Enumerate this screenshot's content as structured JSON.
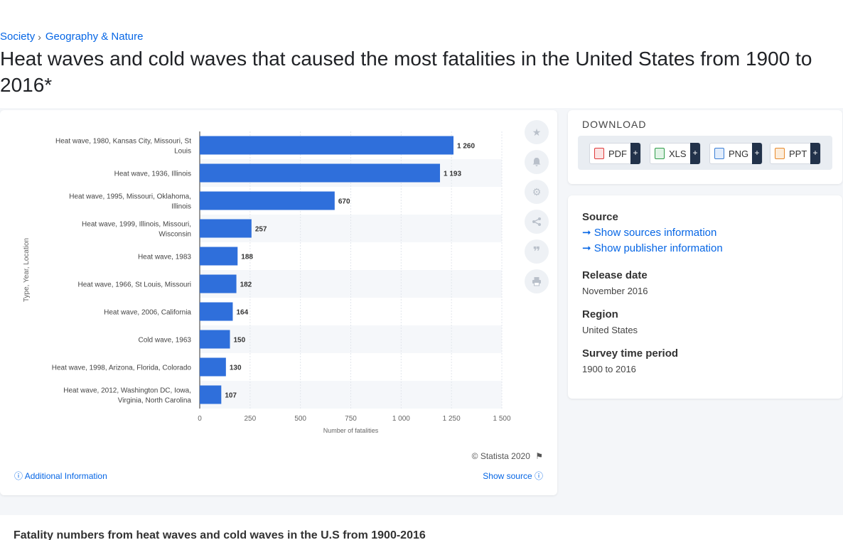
{
  "breadcrumb": {
    "items": [
      "Society",
      "Geography & Nature"
    ],
    "separator": "›"
  },
  "page_title": "Heat waves and cold waves that caused the most fatalities in the United States from 1900 to 2016*",
  "download": {
    "heading": "DOWNLOAD",
    "buttons": [
      {
        "label": "PDF",
        "icon": "pdf-file-icon",
        "color": "#e03a3a"
      },
      {
        "label": "XLS",
        "icon": "xls-file-icon",
        "color": "#2e9c4a"
      },
      {
        "label": "PNG",
        "icon": "png-file-icon",
        "color": "#3b7fd6"
      },
      {
        "label": "PPT",
        "icon": "ppt-file-icon",
        "color": "#e8892b"
      }
    ],
    "plus": "+"
  },
  "info": {
    "source_label": "Source",
    "show_sources": "Show sources information",
    "show_publisher": "Show publisher information",
    "release_label": "Release date",
    "release_value": "November 2016",
    "region_label": "Region",
    "region_value": "United States",
    "period_label": "Survey time period",
    "period_value": "1900 to 2016"
  },
  "chart_footer": {
    "copyright": "© Statista 2020",
    "additional": "Additional Information",
    "show_source": "Show source"
  },
  "tools": [
    "star-icon",
    "bell-icon",
    "gear-icon",
    "share-icon",
    "quote-icon",
    "print-icon"
  ],
  "bottom_title": "Fatality numbers from heat waves and cold waves in the U.S from 1900-2016",
  "colors": {
    "accent": "#0666e5",
    "bar": "#2f6fdb",
    "dark": "#22324a"
  },
  "chart_data": {
    "type": "bar",
    "orientation": "horizontal",
    "categories": [
      [
        "Heat wave, 1980, Kansas City, Missouri, St",
        "Louis"
      ],
      [
        "Heat wave, 1936, Illinois"
      ],
      [
        "Heat wave, 1995, Missouri, Oklahoma,",
        "Illinois"
      ],
      [
        "Heat wave, 1999, Illinois, Missouri,",
        "Wisconsin"
      ],
      [
        "Heat wave, 1983"
      ],
      [
        "Heat wave, 1966, St Louis, Missouri"
      ],
      [
        "Heat wave, 2006, California"
      ],
      [
        "Cold wave, 1963"
      ],
      [
        "Heat wave, 1998, Arizona, Florida, Colorado"
      ],
      [
        "Heat wave, 2012, Washington DC, Iowa,",
        "Virginia, North Carolina"
      ]
    ],
    "values": [
      1260,
      1193,
      670,
      257,
      188,
      182,
      164,
      150,
      130,
      107
    ],
    "value_labels": [
      "1 260",
      "1 193",
      "670",
      "257",
      "188",
      "182",
      "164",
      "150",
      "130",
      "107"
    ],
    "xticks": [
      0,
      250,
      500,
      750,
      1000,
      1250,
      1500
    ],
    "xtick_labels": [
      "0",
      "250",
      "500",
      "750",
      "1 000",
      "1 250",
      "1 500"
    ],
    "xlim": [
      0,
      1500
    ],
    "xlabel": "Number of fatalities",
    "ylabel": "Type, Year, Location",
    "grid": true
  }
}
